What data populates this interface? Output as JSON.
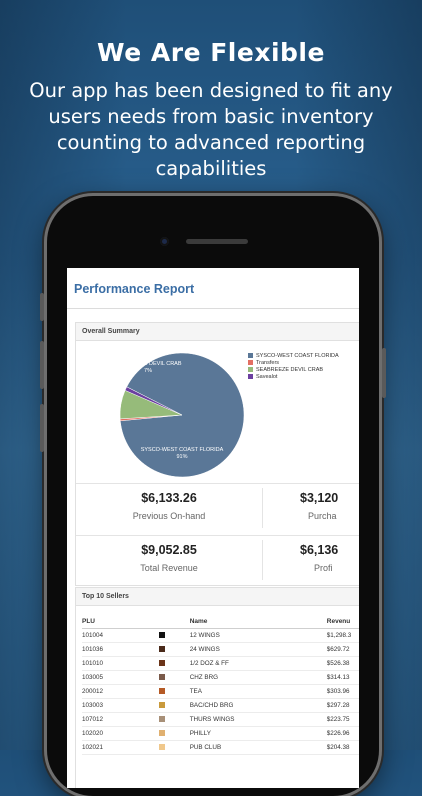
{
  "promo": {
    "headline": "We Are Flexible",
    "subline": "Our app has been designed to fit any users needs from basic inventory counting to advanced reporting capabilities"
  },
  "report": {
    "title": "Performance Report",
    "overall_summary_label": "Overall Summary",
    "top_sellers_label": "Top 10 Sellers"
  },
  "chart_data": {
    "type": "pie",
    "title": "",
    "slices": [
      {
        "label": "SYSCO-WEST COAST FLORIDA",
        "value": 91,
        "color": "#5a7797"
      },
      {
        "label": "Transfers",
        "value": 0.5,
        "color": "#e36f63"
      },
      {
        "label": "SEABREEZE DEVIL CRAB",
        "value": 7.5,
        "color": "#96bb7a"
      },
      {
        "label": "Savealot",
        "value": 1,
        "color": "#6b3fa0"
      }
    ],
    "slice_labels": [
      {
        "text": "SYSCO-WEST COAST FLORIDA",
        "pct": "91%"
      },
      {
        "text": "SEABREEZE DEVIL CRAB",
        "pct": "7%"
      }
    ],
    "legend_position": "right"
  },
  "stats": [
    {
      "value": "$6,133.26",
      "label": "Previous On-hand"
    },
    {
      "value": "$3,120",
      "label": "Purcha"
    },
    {
      "value": "$9,052.85",
      "label": "Total Revenue"
    },
    {
      "value": "$6,136",
      "label": "Profi"
    }
  ],
  "sellers": {
    "columns": [
      "PLU",
      "Name",
      "Revenu"
    ],
    "rows": [
      {
        "plu": "101004",
        "color": "#111111",
        "name": "12 WINGS",
        "revenue": "$1,298.3"
      },
      {
        "plu": "101036",
        "color": "#4a2a1a",
        "name": "24 WINGS",
        "revenue": "$629.72"
      },
      {
        "plu": "101010",
        "color": "#6b3418",
        "name": "1/2 DOZ & FF",
        "revenue": "$526.38"
      },
      {
        "plu": "103005",
        "color": "#7a5a4a",
        "name": "CHZ BRG",
        "revenue": "$314.13"
      },
      {
        "plu": "200012",
        "color": "#b55a25",
        "name": "TEA",
        "revenue": "$303.96"
      },
      {
        "plu": "103003",
        "color": "#c99a3c",
        "name": "BAC/CHD BRG",
        "revenue": "$297.28"
      },
      {
        "plu": "107012",
        "color": "#a89078",
        "name": "THURS WINGS",
        "revenue": "$223.75"
      },
      {
        "plu": "102020",
        "color": "#e0b070",
        "name": "PHILLY",
        "revenue": "$226.96"
      },
      {
        "plu": "102021",
        "color": "#f0c88c",
        "name": "PUB CLUB",
        "revenue": "$204.38"
      }
    ]
  }
}
